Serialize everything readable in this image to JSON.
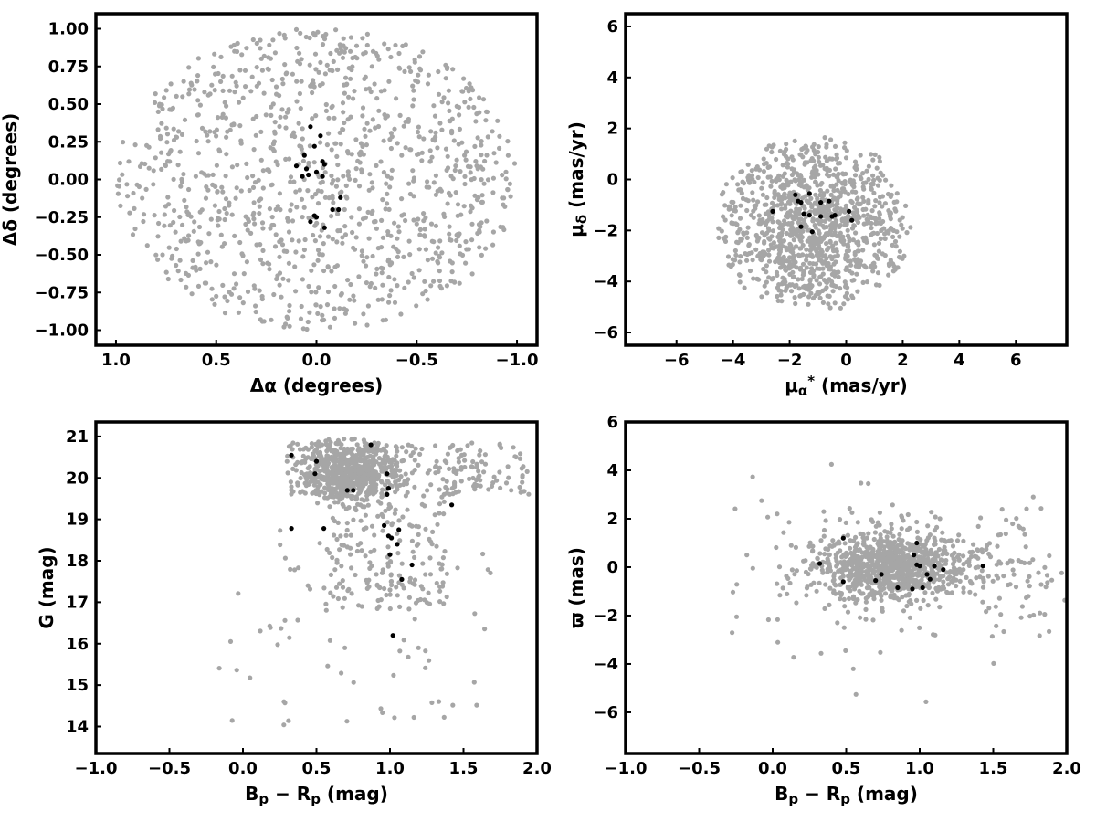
{
  "figure": {
    "background": "#ffffff"
  },
  "colors": {
    "field_stars": "#a6a6a6",
    "members": "#000000",
    "frame": "#000000"
  },
  "chart_data": [
    {
      "id": "sky",
      "type": "scatter",
      "xlabel": "Δα (degrees)",
      "ylabel": "Δδ (degrees)",
      "xlim": [
        1.1,
        -1.1
      ],
      "ylim": [
        -1.1,
        1.1
      ],
      "x_inverted": true,
      "xticks": [
        1.0,
        0.5,
        0.0,
        -0.5,
        -1.0
      ],
      "xtick_labels": [
        "1.0",
        "0.5",
        "0.0",
        "−0.5",
        "−1.0"
      ],
      "yticks": [
        -1.0,
        -0.75,
        -0.5,
        -0.25,
        0.0,
        0.25,
        0.5,
        0.75,
        1.0
      ],
      "ytick_labels": [
        "−1.00",
        "−0.75",
        "−0.50",
        "−0.25",
        "0.00",
        "0.25",
        "0.50",
        "0.75",
        "1.00"
      ],
      "grid": false,
      "field": {
        "distribution": "uniform-disk",
        "n": 1100,
        "center": [
          0.0,
          0.0
        ],
        "radius": 1.0
      },
      "members": [
        [
          0.03,
          0.35
        ],
        [
          0.01,
          0.22
        ],
        [
          -0.02,
          0.29
        ],
        [
          -0.03,
          0.12
        ],
        [
          -0.04,
          0.1
        ],
        [
          0.06,
          0.16
        ],
        [
          0.05,
          0.07
        ],
        [
          0.1,
          0.09
        ],
        [
          0.0,
          0.05
        ],
        [
          0.04,
          0.03
        ],
        [
          0.07,
          0.02
        ],
        [
          -0.03,
          0.02
        ],
        [
          -0.12,
          -0.12
        ],
        [
          -0.08,
          -0.2
        ],
        [
          -0.11,
          -0.2
        ],
        [
          0.01,
          -0.24
        ],
        [
          0.0,
          -0.25
        ],
        [
          0.03,
          -0.28
        ],
        [
          -0.04,
          -0.32
        ]
      ]
    },
    {
      "id": "proper_motion",
      "type": "scatter",
      "xlabel": "μα* (mas/yr)",
      "ylabel": "μδ (mas/yr)",
      "xlim": [
        -7.8,
        7.8
      ],
      "ylim": [
        -6.5,
        6.5
      ],
      "xticks": [
        -6,
        -4,
        -2,
        0,
        2,
        4,
        6
      ],
      "xtick_labels": [
        "−6",
        "−4",
        "−2",
        "0",
        "2",
        "4",
        "6"
      ],
      "yticks": [
        -6,
        -4,
        -2,
        0,
        2,
        4,
        6
      ],
      "ytick_labels": [
        "−6",
        "−4",
        "−2",
        "0",
        "2",
        "4",
        "6"
      ],
      "grid": false,
      "field": {
        "distribution": "gaussian-in-circle",
        "n": 1100,
        "center": [
          -1.2,
          -1.7
        ],
        "sigma": [
          1.6,
          1.5
        ],
        "radius": 3.5
      },
      "members": [
        [
          -1.8,
          -0.6
        ],
        [
          -1.3,
          -0.55
        ],
        [
          -0.6,
          -0.85
        ],
        [
          -0.9,
          -0.9
        ],
        [
          -1.7,
          -0.85
        ],
        [
          -1.6,
          -0.9
        ],
        [
          0.1,
          -1.25
        ],
        [
          -2.6,
          -1.25
        ],
        [
          -1.5,
          -1.35
        ],
        [
          -1.3,
          -1.4
        ],
        [
          -0.9,
          -1.45
        ],
        [
          -0.4,
          -1.4
        ],
        [
          -0.5,
          -1.45
        ],
        [
          0.2,
          -1.6
        ],
        [
          -1.6,
          -1.85
        ],
        [
          -1.2,
          -2.05
        ]
      ]
    },
    {
      "id": "cmd",
      "type": "scatter",
      "xlabel": "Bp − Rp (mag)",
      "ylabel": "G (mag)",
      "xlim": [
        -1.0,
        2.0
      ],
      "ylim": [
        13.35,
        21.35
      ],
      "xticks": [
        -1.0,
        -0.5,
        0.0,
        0.5,
        1.0,
        1.5,
        2.0
      ],
      "xtick_labels": [
        "−1.0",
        "−0.5",
        "0.0",
        "0.5",
        "1.0",
        "1.5",
        "2.0"
      ],
      "yticks": [
        14,
        15,
        16,
        17,
        18,
        19,
        20,
        21
      ],
      "ytick_labels": [
        "14",
        "15",
        "16",
        "17",
        "18",
        "19",
        "20",
        "21"
      ],
      "grid": false,
      "field": {
        "distribution": "cmd-field",
        "n": 1100
      },
      "members": [
        [
          0.87,
          20.8
        ],
        [
          0.33,
          20.55
        ],
        [
          0.5,
          20.4
        ],
        [
          0.49,
          20.1
        ],
        [
          0.98,
          20.1
        ],
        [
          0.71,
          19.7
        ],
        [
          0.75,
          19.7
        ],
        [
          0.99,
          19.75
        ],
        [
          0.98,
          19.6
        ],
        [
          1.42,
          19.35
        ],
        [
          0.33,
          18.78
        ],
        [
          0.55,
          18.78
        ],
        [
          0.96,
          18.85
        ],
        [
          1.06,
          18.75
        ],
        [
          0.99,
          18.6
        ],
        [
          1.01,
          18.55
        ],
        [
          1.05,
          18.4
        ],
        [
          1.0,
          18.15
        ],
        [
          1.15,
          17.9
        ],
        [
          1.08,
          17.55
        ],
        [
          1.02,
          16.2
        ]
      ]
    },
    {
      "id": "parallax",
      "type": "scatter",
      "xlabel": "Bp − Rp (mag)",
      "ylabel": "ϖ (mas)",
      "xlim": [
        -1.0,
        2.0
      ],
      "ylim": [
        -7.7,
        6.0
      ],
      "xticks": [
        -1.0,
        -0.5,
        0.0,
        0.5,
        1.0,
        1.5,
        2.0
      ],
      "xtick_labels": [
        "−1.0",
        "−0.5",
        "0.0",
        "0.5",
        "1.0",
        "1.5",
        "2.0"
      ],
      "yticks": [
        -6,
        -4,
        -2,
        0,
        2,
        4,
        6
      ],
      "ytick_labels": [
        "−6",
        "−4",
        "−2",
        "0",
        "2",
        "4",
        "6"
      ],
      "grid": false,
      "field": {
        "distribution": "parallax-field",
        "n": 1100
      },
      "members": [
        [
          0.32,
          0.15
        ],
        [
          0.48,
          1.2
        ],
        [
          0.98,
          1.0
        ],
        [
          0.96,
          0.5
        ],
        [
          0.98,
          0.1
        ],
        [
          1.0,
          0.05
        ],
        [
          1.1,
          0.05
        ],
        [
          1.43,
          0.05
        ],
        [
          1.05,
          -0.3
        ],
        [
          1.07,
          -0.5
        ],
        [
          1.16,
          -0.1
        ],
        [
          0.74,
          -0.3
        ],
        [
          0.7,
          -0.55
        ],
        [
          0.48,
          -0.6
        ],
        [
          0.85,
          -0.85
        ],
        [
          0.95,
          -0.9
        ],
        [
          1.02,
          -0.85
        ]
      ]
    }
  ]
}
